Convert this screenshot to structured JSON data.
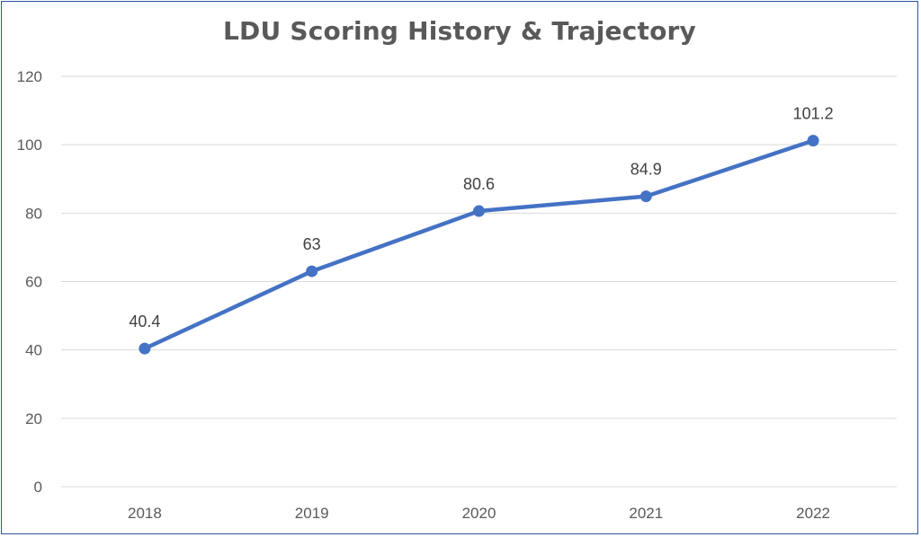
{
  "chart_data": {
    "type": "line",
    "title": "LDU Scoring History & Trajectory",
    "xlabel": "",
    "ylabel": "",
    "categories": [
      "2018",
      "2019",
      "2020",
      "2021",
      "2022"
    ],
    "series": [
      {
        "values": [
          40.4,
          63,
          80.6,
          84.9,
          101.2
        ],
        "data_labels": [
          "40.4",
          "63",
          "80.6",
          "84.9",
          "101.2"
        ],
        "color": "#4472c4"
      }
    ],
    "yticks": [
      0,
      20,
      40,
      60,
      80,
      100,
      120
    ],
    "ylim": [
      0,
      120
    ],
    "grid": "horizontal",
    "gridline_color": "#d9d9d9",
    "legend": "none"
  }
}
